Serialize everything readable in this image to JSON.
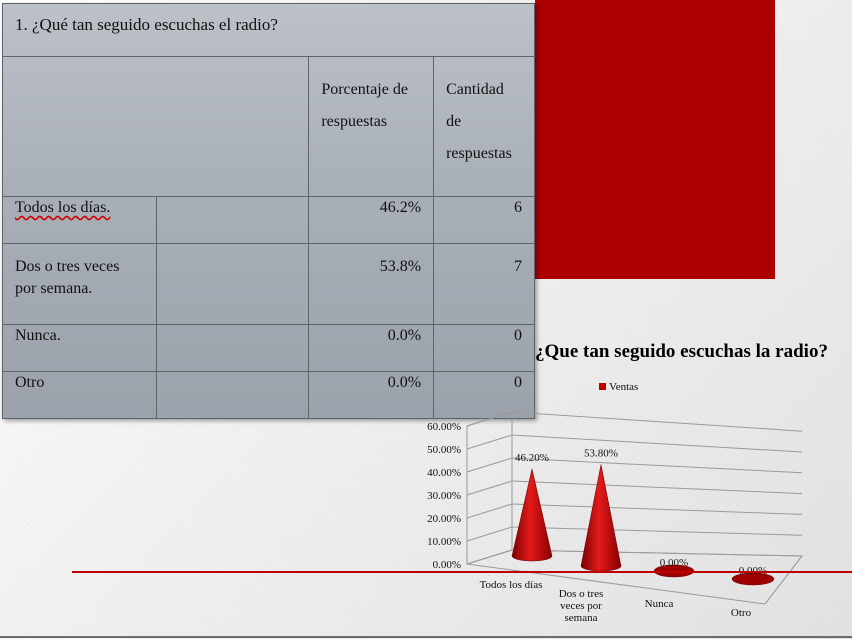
{
  "table": {
    "title": "1. ¿Qué tan seguido escuchas el radio?",
    "header_percent": "Porcentaje de respuestas",
    "header_count": "Cantidad de respuestas",
    "rows": [
      {
        "label": "Todos los días.",
        "percent": "46.2%",
        "count": "6"
      },
      {
        "label": "Dos o tres veces por semana.",
        "percent": "53.8%",
        "count": "7"
      },
      {
        "label": "Nunca.",
        "percent": "0.0%",
        "count": "0"
      },
      {
        "label": "Otro",
        "percent": "0.0%",
        "count": "0"
      }
    ]
  },
  "colors": {
    "accent_red": "#ac0000",
    "cone_red": "#c00000"
  },
  "chart_data": {
    "type": "bar",
    "shape": "3d-cone",
    "title": "¿Que tan seguido escuchas la radio?",
    "categories": [
      "Todos los días",
      "Dos o tres veces por semana",
      "Nunca",
      "Otro"
    ],
    "series": [
      {
        "name": "Ventas",
        "values": [
          46.2,
          53.8,
          0,
          0
        ]
      }
    ],
    "data_labels": [
      "46.20%",
      "53.80%",
      "0.00%",
      "0.00%"
    ],
    "y_ticks": [
      "0.00%",
      "10.00%",
      "20.00%",
      "30.00%",
      "40.00%",
      "50.00%",
      "60.00%"
    ],
    "ylim": [
      0,
      60
    ],
    "grid": true,
    "legend_position": "top"
  }
}
